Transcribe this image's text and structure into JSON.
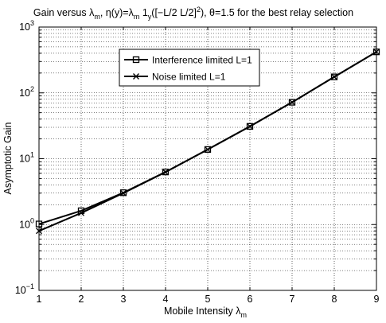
{
  "chart_data": {
    "type": "line",
    "title": {
      "p1": "Gain versus λ",
      "p1_sub": "m",
      "p2": ", η(y)=λ",
      "p2_sub": "m",
      "p3": " 1",
      "p3_sub": "y",
      "p4": "([−L/2 L/2]",
      "p4_sup": "2",
      "p5": "), θ=1.5  for the best relay selection"
    },
    "xlabel": {
      "main": "Mobile Intensity λ",
      "sub": "m"
    },
    "ylabel": "Asymptotic Gain",
    "x": [
      1,
      2,
      3,
      4,
      5,
      6,
      7,
      8,
      9
    ],
    "xlim": [
      1,
      9
    ],
    "ylim": [
      0.1,
      1000
    ],
    "yscale": "log",
    "x_ticks": [
      "1",
      "2",
      "3",
      "4",
      "5",
      "6",
      "7",
      "8",
      "9"
    ],
    "y_ticks": [
      {
        "base": "10",
        "exp": "−1",
        "value": 0.1
      },
      {
        "base": "10",
        "exp": "0",
        "value": 1
      },
      {
        "base": "10",
        "exp": "1",
        "value": 10
      },
      {
        "base": "10",
        "exp": "2",
        "value": 100
      },
      {
        "base": "10",
        "exp": "3",
        "value": 1000
      }
    ],
    "grid": true,
    "legend_position": "top-center",
    "series": [
      {
        "name": "Interference limited L=1",
        "marker": "square",
        "color": "#000000",
        "values": [
          1.02,
          1.62,
          3.05,
          6.3,
          13.8,
          31.0,
          72.0,
          175.0,
          420.0
        ]
      },
      {
        "name": "Noise limited L=1",
        "marker": "x",
        "color": "#000000",
        "values": [
          0.8,
          1.5,
          3.0,
          6.25,
          13.8,
          31.0,
          72.0,
          175.0,
          420.0
        ]
      }
    ]
  }
}
